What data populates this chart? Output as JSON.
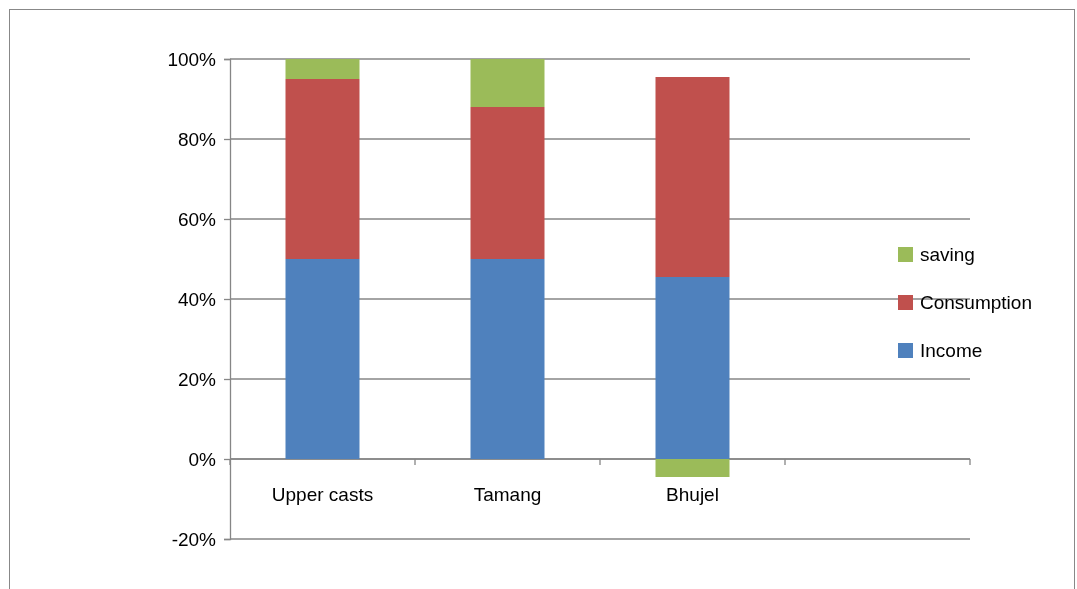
{
  "chart_data": {
    "type": "bar",
    "stacked": true,
    "categories": [
      "Upper casts",
      "Tamang",
      "Bhujel",
      null
    ],
    "series": [
      {
        "name": "Income",
        "color": "#4f81bd",
        "values": [
          50,
          50,
          45.5,
          null
        ]
      },
      {
        "name": "Consumption",
        "color": "#c0504d",
        "values": [
          45,
          38,
          50,
          null
        ]
      },
      {
        "name": "saving",
        "color": "#9bbb59",
        "values": [
          5,
          12,
          -4.5,
          null
        ]
      }
    ],
    "ylim": [
      -20,
      100
    ],
    "yticks": [
      {
        "value": -20,
        "label": "-20%"
      },
      {
        "value": 0,
        "label": "0%"
      },
      {
        "value": 20,
        "label": "20%"
      },
      {
        "value": 40,
        "label": "40%"
      },
      {
        "value": 60,
        "label": "60%"
      },
      {
        "value": 80,
        "label": "80%"
      },
      {
        "value": 100,
        "label": "100%"
      }
    ],
    "grid": "y",
    "legend": "right"
  }
}
